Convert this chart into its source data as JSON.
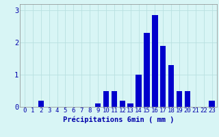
{
  "categories": [
    0,
    1,
    2,
    3,
    4,
    5,
    6,
    7,
    8,
    9,
    10,
    11,
    12,
    13,
    14,
    15,
    16,
    17,
    18,
    19,
    20,
    21,
    22,
    23
  ],
  "values": [
    0,
    0,
    0.2,
    0,
    0,
    0,
    0,
    0,
    0,
    0.1,
    0.5,
    0.5,
    0.2,
    0.1,
    1.0,
    2.3,
    2.85,
    1.9,
    1.3,
    0.5,
    0.5,
    0,
    0,
    0.2
  ],
  "bar_color": "#0000cc",
  "bg_color": "#d8f5f5",
  "grid_color": "#b8e0e0",
  "axis_color": "#888888",
  "text_color": "#0000aa",
  "xlabel": "Précipitations 6min ( mm )",
  "ylim": [
    0,
    3.2
  ],
  "yticks": [
    0,
    1,
    2,
    3
  ],
  "tick_fontsize": 6.5,
  "label_fontsize": 7.5
}
